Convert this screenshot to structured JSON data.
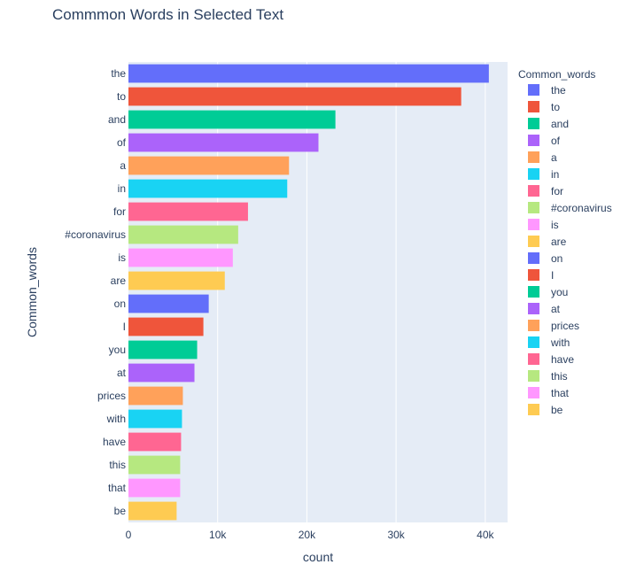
{
  "chart_data": {
    "type": "bar",
    "orientation": "horizontal",
    "title": "Commmon Words in Selected Text",
    "xlabel": "count",
    "ylabel": "Common_words",
    "legend_title": "Common_words",
    "legend_position": "right",
    "grid": true,
    "xlim": [
      0,
      42500
    ],
    "xticks": [
      0,
      10000,
      20000,
      30000,
      40000
    ],
    "xtick_labels": [
      "0",
      "10k",
      "20k",
      "30k",
      "40k"
    ],
    "categories": [
      "the",
      "to",
      "and",
      "of",
      "a",
      "in",
      "for",
      "#coronavirus",
      "is",
      "are",
      "on",
      "I",
      "you",
      "at",
      "prices",
      "with",
      "have",
      "this",
      "that",
      "be"
    ],
    "values": [
      40400,
      37300,
      23200,
      21300,
      18000,
      17800,
      13400,
      12300,
      11700,
      10800,
      9000,
      8400,
      7700,
      7400,
      6100,
      6000,
      5900,
      5800,
      5800,
      5400
    ],
    "colors": [
      "#636efa",
      "#EF553B",
      "#00cc96",
      "#ab63fa",
      "#FFA15A",
      "#19d3f3",
      "#FF6692",
      "#B6E880",
      "#FF97FF",
      "#FECB52",
      "#636efa",
      "#EF553B",
      "#00cc96",
      "#ab63fa",
      "#FFA15A",
      "#19d3f3",
      "#FF6692",
      "#B6E880",
      "#FF97FF",
      "#FECB52"
    ],
    "plot_background": "#E5ECF6"
  }
}
